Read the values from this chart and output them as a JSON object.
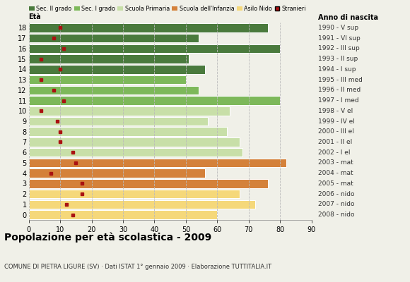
{
  "ages": [
    18,
    17,
    16,
    15,
    14,
    13,
    12,
    11,
    10,
    9,
    8,
    7,
    6,
    5,
    4,
    3,
    2,
    1,
    0
  ],
  "anni_nascita": [
    "1990 - V sup",
    "1991 - VI sup",
    "1992 - III sup",
    "1993 - II sup",
    "1994 - I sup",
    "1995 - III med",
    "1996 - II med",
    "1997 - I med",
    "1998 - V el",
    "1999 - IV el",
    "2000 - III el",
    "2001 - II el",
    "2002 - I el",
    "2003 - mat",
    "2004 - mat",
    "2005 - mat",
    "2006 - nido",
    "2007 - nido",
    "2008 - nido"
  ],
  "bar_values": [
    76,
    54,
    80,
    51,
    56,
    50,
    54,
    80,
    64,
    57,
    63,
    67,
    68,
    82,
    56,
    76,
    67,
    72,
    60
  ],
  "stranieri": [
    10,
    8,
    11,
    4,
    10,
    4,
    8,
    11,
    4,
    9,
    10,
    10,
    14,
    15,
    7,
    17,
    17,
    12,
    14
  ],
  "categories": {
    "sec2": [
      18,
      17,
      16,
      15,
      14
    ],
    "sec1": [
      13,
      12,
      11
    ],
    "primaria": [
      10,
      9,
      8,
      7,
      6
    ],
    "infanzia": [
      5,
      4,
      3
    ],
    "nido": [
      2,
      1,
      0
    ]
  },
  "colors": {
    "sec2": "#4a7a3d",
    "sec1": "#7db85a",
    "primaria": "#c8dfa8",
    "infanzia": "#d4813a",
    "nido": "#f5d87a"
  },
  "legend_labels": [
    "Sec. II grado",
    "Sec. I grado",
    "Scuola Primaria",
    "Scuola dell'Infanzia",
    "Asilo Nido",
    "Stranieri"
  ],
  "stranieri_color": "#aa1111",
  "title": "Popolazione per età scolastica - 2009",
  "subtitle": "COMUNE DI PIETRA LIGURE (SV) · Dati ISTAT 1° gennaio 2009 · Elaborazione TUTTITALIA.IT",
  "xlabel_eta": "Età",
  "xlabel_anno": "Anno di nascita",
  "xlim": [
    0,
    90
  ],
  "xticks": [
    0,
    10,
    20,
    30,
    40,
    50,
    60,
    70,
    80,
    90
  ],
  "background_color": "#f0f0e8",
  "plot_bg": "#f0f0e8",
  "grid_color": "#bbbbbb"
}
